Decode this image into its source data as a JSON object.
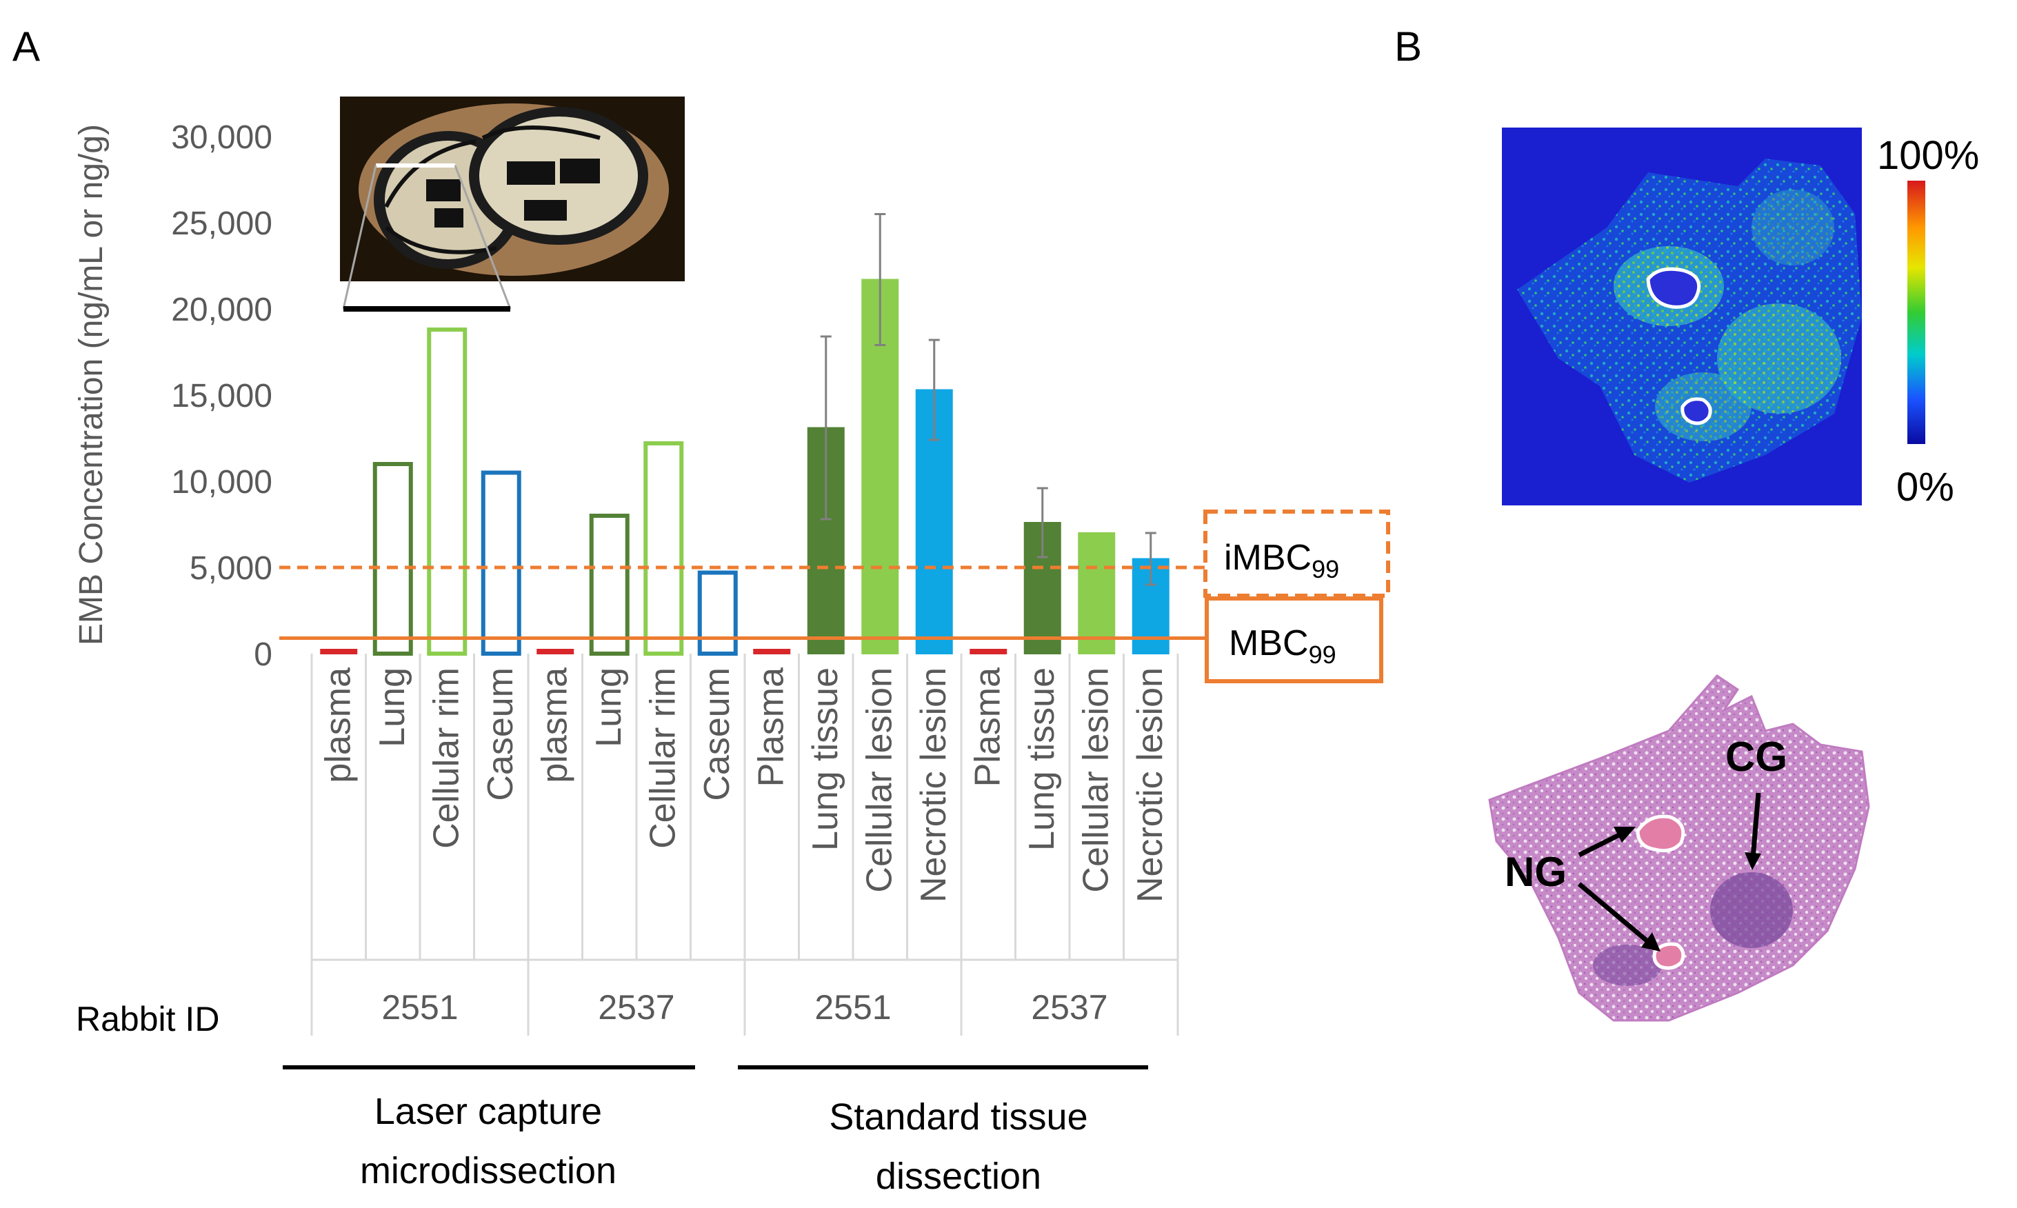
{
  "panels": {
    "a_label": "A",
    "b_label": "B"
  },
  "chart_data": {
    "type": "bar",
    "ylabel": "EMB Concentration (ng/mL or ng/g)",
    "ylim": [
      0,
      30000
    ],
    "yticks": [
      0,
      5000,
      10000,
      15000,
      20000,
      25000,
      30000
    ],
    "ytick_labels": [
      "0",
      "5,000",
      "10,000",
      "15,000",
      "20,000",
      "25,000",
      "30,000"
    ],
    "categories": [
      "plasma",
      "Lung",
      "Cellular rim",
      "Caseum",
      "plasma",
      "Lung",
      "Cellular rim",
      "Caseum",
      "Plasma",
      "Lung tissue",
      "Cellular lesion",
      "Necrotic lesion",
      "Plasma",
      "Lung tissue",
      "Cellular lesion",
      "Necrotic lesion"
    ],
    "values": [
      200,
      11000,
      18800,
      10500,
      150,
      8000,
      12200,
      4700,
      200,
      13100,
      21700,
      15300,
      150,
      7600,
      7000,
      5500
    ],
    "errors": [
      null,
      null,
      null,
      null,
      null,
      null,
      null,
      null,
      null,
      5300,
      3800,
      2900,
      null,
      2000,
      null,
      1500
    ],
    "styles": [
      "solid",
      "outline",
      "outline",
      "outline",
      "solid",
      "outline",
      "outline",
      "outline",
      "solid",
      "solid",
      "solid",
      "solid",
      "solid",
      "solid",
      "solid",
      "solid"
    ],
    "bar_colors": [
      "#d8262a",
      "#538135",
      "#8ccd4e",
      "#1b75bc",
      "#d8262a",
      "#538135",
      "#8ccd4e",
      "#1b75bc",
      "#d8262a",
      "#538135",
      "#8ccd4e",
      "#0fa6e4",
      "#d8262a",
      "#538135",
      "#8ccd4e",
      "#0fa6e4"
    ],
    "rabbit_id_label": "Rabbit ID",
    "groups": [
      "2551",
      "2537",
      "2551",
      "2537"
    ],
    "methods": [
      {
        "lines": [
          "Laser capture",
          "microdissection"
        ]
      },
      {
        "lines": [
          "Standard tissue",
          "dissection"
        ]
      }
    ],
    "reference_lines": [
      {
        "name": "iMBC",
        "sub": "99",
        "value": 5000,
        "style": "dashed",
        "color": "#ed7d31"
      },
      {
        "name": "MBC",
        "sub": "99",
        "value": 900,
        "style": "solid",
        "color": "#ed7d31"
      }
    ]
  },
  "heatmap": {
    "colorbar_max": "100%",
    "colorbar_min": "0%"
  },
  "histology": {
    "ng_label": "NG",
    "cg_label": "CG"
  }
}
